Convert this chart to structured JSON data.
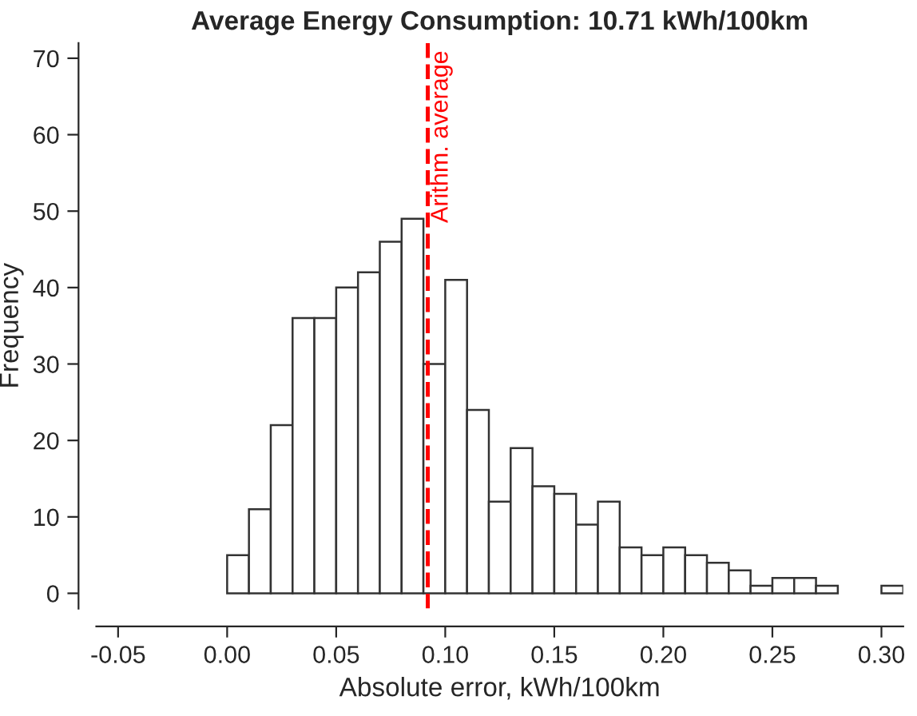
{
  "chart_data": {
    "type": "histogram",
    "title": "Average Energy Consumption: 10.71 kWh/100km",
    "xlabel": "Absolute error, kWh/100km",
    "ylabel": "Frequency",
    "bins": [
      0.0,
      0.01,
      0.02,
      0.03,
      0.04,
      0.05,
      0.06,
      0.07,
      0.08,
      0.09,
      0.1,
      0.11,
      0.12,
      0.13,
      0.14,
      0.15,
      0.16,
      0.17,
      0.18,
      0.19,
      0.2,
      0.21,
      0.22,
      0.23,
      0.24,
      0.25,
      0.26,
      0.27,
      0.28,
      0.29,
      0.3,
      0.31
    ],
    "values": [
      5,
      11,
      22,
      36,
      36,
      40,
      42,
      46,
      49,
      30,
      41,
      24,
      12,
      19,
      14,
      13,
      9,
      12,
      6,
      5,
      6,
      5,
      4,
      3,
      1,
      2,
      2,
      1,
      0,
      0,
      1
    ],
    "color": "#ffffff",
    "xlim": [
      -0.06,
      0.31
    ],
    "ylim": [
      -2,
      72
    ],
    "xticks": [
      {
        "value": -0.05,
        "label": "-0.05"
      },
      {
        "value": 0.0,
        "label": "0.00"
      },
      {
        "value": 0.05,
        "label": "0.05"
      },
      {
        "value": 0.1,
        "label": "0.10"
      },
      {
        "value": 0.15,
        "label": "0.15"
      },
      {
        "value": 0.2,
        "label": "0.20"
      },
      {
        "value": 0.25,
        "label": "0.25"
      },
      {
        "value": 0.3,
        "label": "0.30"
      }
    ],
    "yticks": [
      0,
      10,
      20,
      30,
      40,
      50,
      60,
      70
    ],
    "ref_lines": [
      {
        "axis": "x",
        "value": 0.092,
        "label": "Arithm. average",
        "color": "#ff0000",
        "line_style": "dashed"
      }
    ],
    "grid": false,
    "legend": false
  }
}
